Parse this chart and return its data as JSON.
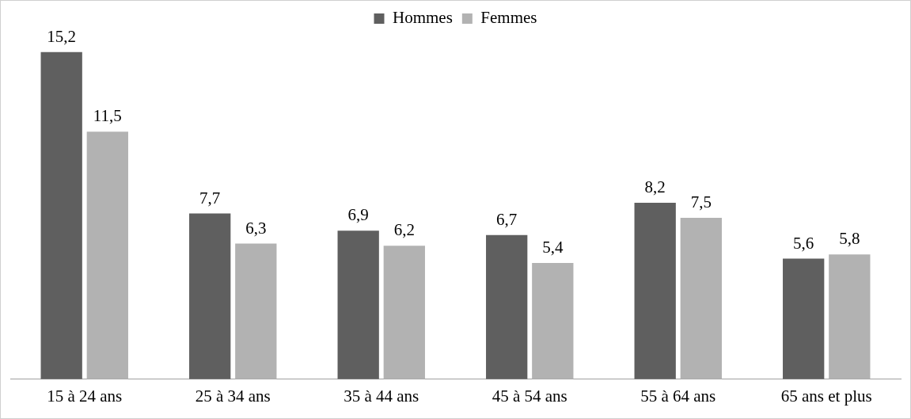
{
  "chart_data": {
    "type": "bar",
    "categories": [
      "15 à 24 ans",
      "25 à 34 ans",
      "35 à 44 ans",
      "45 à 54 ans",
      "55 à 64 ans",
      "65 ans et plus"
    ],
    "series": [
      {
        "name": "Hommes",
        "color": "#5f5f5f",
        "values": [
          15.2,
          7.7,
          6.9,
          6.7,
          8.2,
          5.6
        ],
        "value_labels": [
          "15,2",
          "7,7",
          "6,9",
          "6,7",
          "8,2",
          "5,6"
        ]
      },
      {
        "name": "Femmes",
        "color": "#b2b2b2",
        "values": [
          11.5,
          6.3,
          6.2,
          5.4,
          7.5,
          5.8
        ],
        "value_labels": [
          "11,5",
          "6,3",
          "6,2",
          "5,4",
          "7,5",
          "5,8"
        ]
      }
    ],
    "legend": "top",
    "grid": false
  }
}
